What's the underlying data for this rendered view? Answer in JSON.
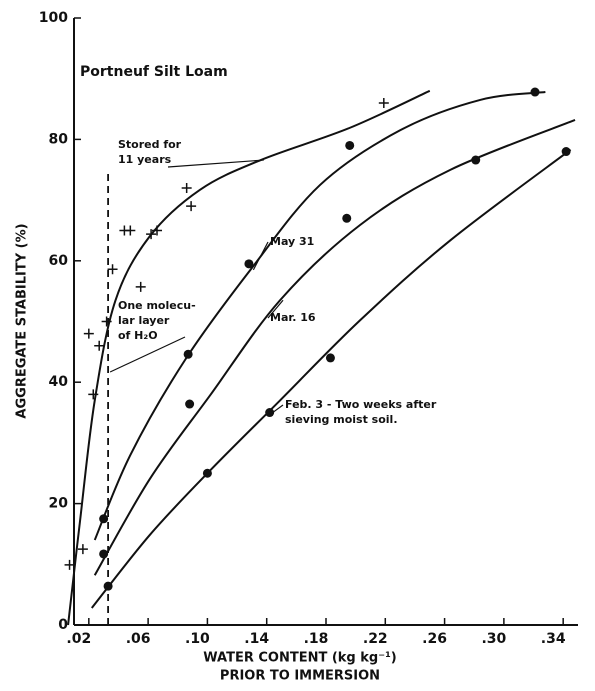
{
  "chart_data": {
    "type": "scatter",
    "title": "Portneuf Silt Loam",
    "x_label": "WATER CONTENT (kg kg⁻¹)",
    "x_label_2": "PRIOR TO IMMERSION",
    "y_label": "AGGREGATE STABILITY (%)",
    "xlim": [
      0.01,
      0.35
    ],
    "ylim": [
      0,
      100
    ],
    "xticks": [
      {
        "value": 0.02,
        "label": ".02"
      },
      {
        "value": 0.06,
        "label": ".06"
      },
      {
        "value": 0.1,
        "label": ".10"
      },
      {
        "value": 0.14,
        "label": ".14"
      },
      {
        "value": 0.18,
        "label": ".18"
      },
      {
        "value": 0.22,
        "label": ".22"
      },
      {
        "value": 0.26,
        "label": ".26"
      },
      {
        "value": 0.3,
        "label": ".30"
      },
      {
        "value": 0.34,
        "label": ".34"
      }
    ],
    "yticks": [
      0,
      20,
      40,
      60,
      80,
      100
    ],
    "color": "#111111",
    "series": [
      {
        "name": "Stored for 11 years",
        "label_lines": [
          "Stored for",
          "11 years"
        ],
        "marker": "plus",
        "x": [
          0.007,
          0.016,
          0.02,
          0.023,
          0.027,
          0.032,
          0.036,
          0.044,
          0.048,
          0.055,
          0.062,
          0.066,
          0.086,
          0.089,
          0.219
        ],
        "y": [
          9.9,
          12.5,
          48,
          38,
          46,
          50,
          58.6,
          65,
          65,
          55.7,
          64.4,
          65,
          72,
          69,
          86
        ],
        "curve_x": [
          0.006,
          0.014,
          0.024,
          0.038,
          0.061,
          0.095,
          0.136,
          0.196,
          0.25
        ],
        "curve_y": [
          0,
          17,
          37,
          53.5,
          64,
          71.7,
          76.6,
          81.9,
          88
        ]
      },
      {
        "name": "May 31",
        "label_lines": [
          "May 31"
        ],
        "marker": "dot",
        "x": [
          0.03,
          0.087,
          0.128,
          0.196,
          0.321
        ],
        "y": [
          17.5,
          44.6,
          59.5,
          79,
          87.8
        ],
        "curve_x": [
          0.024,
          0.048,
          0.085,
          0.129,
          0.176,
          0.23,
          0.284,
          0.328
        ],
        "curve_y": [
          14,
          28,
          43.7,
          58.5,
          72.5,
          81.5,
          86.5,
          87.8
        ]
      },
      {
        "name": "Mar. 16",
        "label_lines": [
          "Mar. 16"
        ],
        "marker": "dot",
        "x": [
          0.03,
          0.088,
          0.194,
          0.281
        ],
        "y": [
          11.7,
          36.4,
          67,
          76.6
        ],
        "curve_x": [
          0.024,
          0.061,
          0.102,
          0.149,
          0.203,
          0.264,
          0.348
        ],
        "curve_y": [
          8.2,
          24,
          37.9,
          53.5,
          65.9,
          75,
          83.2
        ]
      },
      {
        "name": "Feb. 3 - Two weeks after sieving moist soil.",
        "label_lines": [
          "Feb. 3 - Two weeks after",
          "sieving moist soil."
        ],
        "marker": "dot",
        "x": [
          0.033,
          0.1,
          0.142,
          0.183,
          0.342
        ],
        "y": [
          6.4,
          25,
          35,
          44,
          78
        ],
        "curve_x": [
          0.022,
          0.061,
          0.102,
          0.149,
          0.203,
          0.264,
          0.345
        ],
        "curve_y": [
          2.8,
          14.8,
          25.5,
          37,
          50.2,
          63.4,
          78.3
        ]
      }
    ],
    "molecular_layer": {
      "label_lines": [
        "One molecu-",
        "lar layer",
        "of H₂O"
      ],
      "x": 0.033,
      "y_top": 75
    }
  }
}
